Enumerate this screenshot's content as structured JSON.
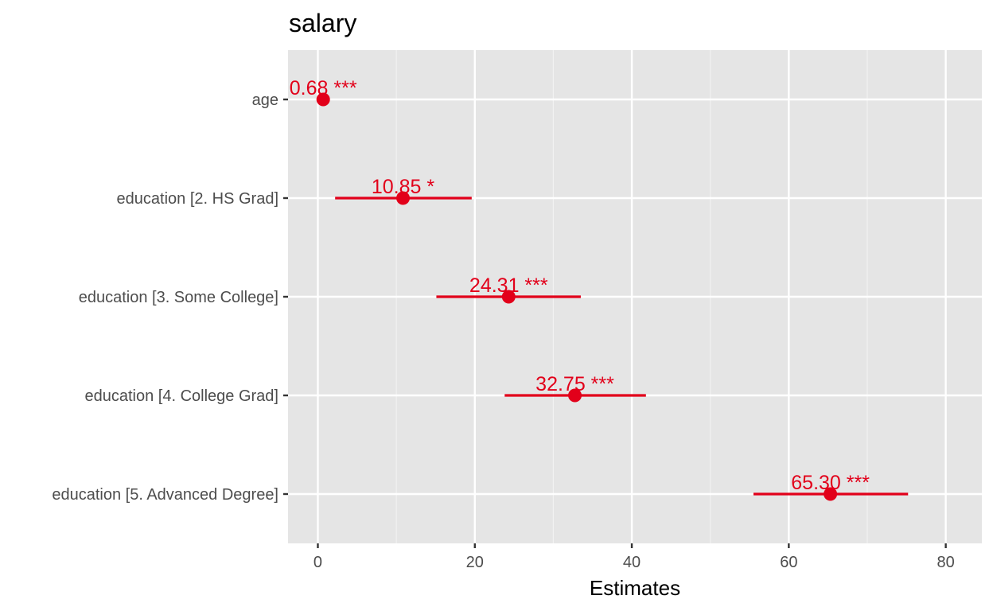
{
  "chart_data": {
    "type": "scatter",
    "title": "salary",
    "xlabel": "Estimates",
    "ylabel": "",
    "xlim": [
      -3.8,
      84.6
    ],
    "xticks": [
      0,
      20,
      40,
      60,
      80
    ],
    "grid": true,
    "legend": "none",
    "color": "#e2001a",
    "panel_background": "#e5e5e5",
    "terms": [
      {
        "label": "age",
        "estimate": 0.68,
        "ci_low": 0.4,
        "ci_high": 0.96,
        "annotation": "0.68 ***"
      },
      {
        "label": "education [2. HS Grad]",
        "estimate": 10.85,
        "ci_low": 2.2,
        "ci_high": 19.6,
        "annotation": "10.85 *"
      },
      {
        "label": "education [3. Some College]",
        "estimate": 24.31,
        "ci_low": 15.1,
        "ci_high": 33.5,
        "annotation": "24.31 ***"
      },
      {
        "label": "education [4. College Grad]",
        "estimate": 32.75,
        "ci_low": 23.8,
        "ci_high": 41.8,
        "annotation": "32.75 ***"
      },
      {
        "label": "education [5. Advanced Degree]",
        "estimate": 65.3,
        "ci_low": 55.5,
        "ci_high": 75.2,
        "annotation": "65.30 ***"
      }
    ]
  }
}
